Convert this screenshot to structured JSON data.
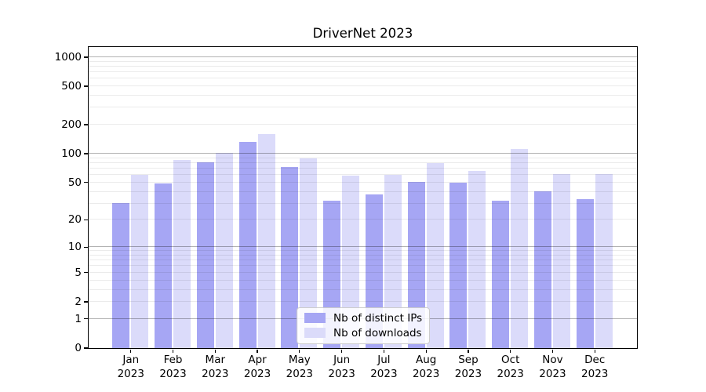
{
  "title": "DriverNet 2023",
  "chart_data": {
    "type": "bar",
    "title": "DriverNet 2023",
    "categories": [
      "Jan",
      "Feb",
      "Mar",
      "Apr",
      "May",
      "Jun",
      "Jul",
      "Aug",
      "Sep",
      "Oct",
      "Nov",
      "Dec"
    ],
    "category_year": "2023",
    "series": [
      {
        "name": "Nb of distinct IPs",
        "slug": "distinct-ips",
        "color": "#a6a6f4",
        "values": [
          30,
          48,
          81,
          131,
          72,
          32,
          37,
          50,
          49,
          32,
          40,
          33
        ]
      },
      {
        "name": "Nb of downloads",
        "slug": "downloads",
        "color": "#dbdbfa",
        "values": [
          60,
          86,
          102,
          158,
          89,
          58,
          60,
          79,
          65,
          112,
          61,
          61
        ]
      }
    ],
    "xlabel": "",
    "ylabel": "",
    "y_axis": {
      "scale": "log1p",
      "ticks": [
        1000,
        500,
        200,
        100,
        50,
        20,
        10,
        5,
        2,
        1,
        0
      ],
      "max": 1271,
      "grid_major": [
        1,
        10,
        100,
        1000
      ],
      "grid_minor_decades": [
        1,
        10,
        100
      ]
    },
    "x_axis": {
      "units": 13,
      "first_center_unit": 1
    },
    "grid": "both",
    "legend_position": "lower center"
  },
  "colors": {
    "bar_dark": "#a6a6f4",
    "bar_light": "#dbdbfa",
    "grid_major": "rgba(0,0,0,0.30)",
    "grid_minor": "rgba(0,0,0,0.08)",
    "spine": "#000000",
    "text": "#000000",
    "legend_border": "#cccccc",
    "legend_background": "rgba(255,255,255,0.85)"
  }
}
